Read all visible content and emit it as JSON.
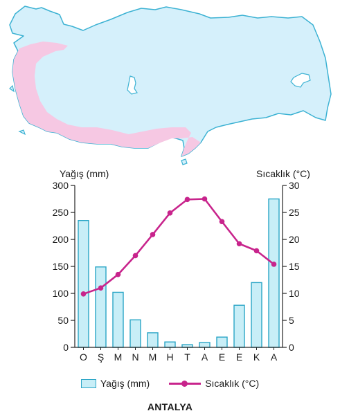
{
  "caption": "ANTALYA",
  "colors": {
    "land_fill": "#d5f0fb",
    "land_stroke": "#3cb2d3",
    "region_fill": "#f6c8e3",
    "bar_fill": "#c8eef7",
    "bar_stroke": "#2aa5c6",
    "line": "#c8248c"
  },
  "chart_data": {
    "type": "bar+line",
    "categories": [
      "O",
      "Ş",
      "M",
      "N",
      "M",
      "H",
      "T",
      "A",
      "E",
      "E",
      "K",
      "A"
    ],
    "series": [
      {
        "name": "Yağış (mm)",
        "type": "bar",
        "axis": "left",
        "values": [
          235,
          149,
          102,
          51,
          27,
          10,
          5,
          9,
          19,
          78,
          120,
          275
        ]
      },
      {
        "name": "Sıcaklık (°C)",
        "type": "line",
        "axis": "right",
        "values": [
          9.9,
          11.0,
          13.5,
          17.0,
          20.9,
          24.9,
          27.4,
          27.5,
          23.3,
          19.2,
          17.9,
          15.4
        ]
      }
    ],
    "ylabel_left": "Yağış (mm)",
    "ylabel_right": "Sıcaklık (°C)",
    "ylim_left": [
      0,
      300
    ],
    "ylim_right": [
      0,
      30
    ],
    "yticks_left": [
      0,
      50,
      100,
      150,
      200,
      250,
      300
    ],
    "yticks_right": [
      0,
      5,
      10,
      15,
      20,
      25,
      30
    ],
    "grid": false,
    "legend_position": "bottom"
  }
}
